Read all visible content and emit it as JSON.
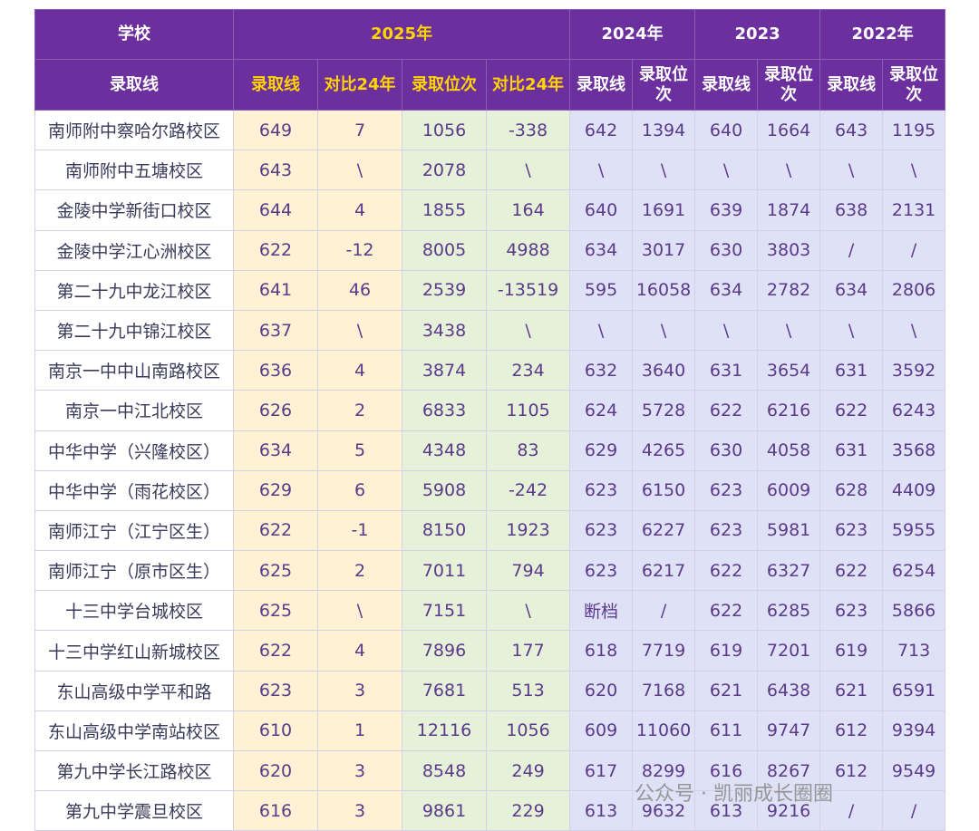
{
  "table": {
    "header": {
      "school": "学校",
      "y2025": "2025年",
      "y2024": "2024年",
      "y2023": "2023",
      "y2022": "2022年"
    },
    "subheader": [
      "录取线",
      "录取线",
      "对比24年",
      "录取位次",
      "对比24年",
      "录取线",
      "录取位次",
      "录取线",
      "录取位次",
      "录取线",
      "录取位次"
    ],
    "rows": [
      [
        "南师附中察哈尔路校区",
        649,
        7,
        1056,
        -338,
        642,
        1394,
        640,
        1664,
        643,
        1195
      ],
      [
        "南师附中五塘校区",
        643,
        "\\",
        2078,
        "\\",
        "\\",
        "\\",
        "\\",
        "\\",
        "\\",
        "\\"
      ],
      [
        "金陵中学新街口校区",
        644,
        4,
        1855,
        164,
        640,
        1691,
        639,
        1874,
        638,
        2131
      ],
      [
        "金陵中学江心洲校区",
        622,
        -12,
        8005,
        4988,
        634,
        3017,
        630,
        3803,
        "/",
        "/"
      ],
      [
        "第二十九中龙江校区",
        641,
        46,
        2539,
        -13519,
        595,
        16058,
        634,
        2782,
        634,
        2806
      ],
      [
        "第二十九中锦江校区",
        637,
        "\\",
        3438,
        "\\",
        "\\",
        "\\",
        "\\",
        "\\",
        "\\",
        "\\"
      ],
      [
        "南京一中中山南路校区",
        636,
        4,
        3874,
        234,
        632,
        3640,
        631,
        3654,
        631,
        3592
      ],
      [
        "南京一中江北校区",
        626,
        2,
        6833,
        1105,
        624,
        5728,
        622,
        6216,
        622,
        6243
      ],
      [
        "中华中学（兴隆校区）",
        634,
        5,
        4348,
        83,
        629,
        4265,
        630,
        4058,
        631,
        3568
      ],
      [
        "中华中学（雨花校区）",
        629,
        6,
        5908,
        -242,
        623,
        6150,
        623,
        6009,
        628,
        4409
      ],
      [
        "南师江宁（江宁区生）",
        622,
        -1,
        8150,
        1923,
        623,
        6227,
        623,
        5981,
        623,
        5955
      ],
      [
        "南师江宁（原市区生）",
        625,
        2,
        7011,
        794,
        623,
        6217,
        622,
        6327,
        622,
        6254
      ],
      [
        "十三中学台城校区",
        625,
        "\\",
        7151,
        "\\",
        "断档",
        "/",
        622,
        6285,
        623,
        5866
      ],
      [
        "十三中学红山新城校区",
        622,
        4,
        7896,
        177,
        618,
        7719,
        619,
        7201,
        619,
        713
      ],
      [
        "东山高级中学平和路",
        623,
        3,
        7681,
        513,
        620,
        7168,
        621,
        6438,
        621,
        6591
      ],
      [
        "东山高级中学南站校区",
        610,
        1,
        12116,
        1056,
        609,
        11060,
        611,
        9747,
        612,
        9394
      ],
      [
        "第九中学长江路校区",
        620,
        3,
        8548,
        249,
        617,
        8299,
        616,
        8267,
        612,
        9549
      ],
      [
        "第九中学震旦校区",
        616,
        3,
        9861,
        229,
        613,
        9632,
        613,
        9216,
        "/",
        "/"
      ]
    ]
  },
  "watermark": "公众号 · 凯丽成长圈圈"
}
